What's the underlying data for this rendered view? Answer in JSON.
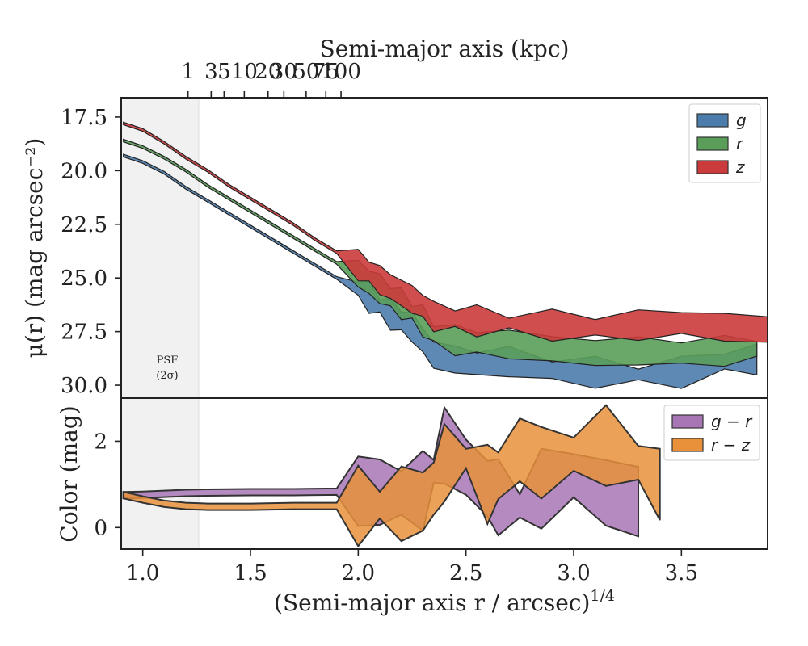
{
  "chart_data": [
    {
      "type": "area",
      "xlabel_top": "Semi-major axis (kpc)",
      "xticks_top": [
        1,
        3,
        5,
        10,
        20,
        30,
        50,
        75,
        100
      ],
      "ylabel": "μ(r) (mag arcsec⁻²)",
      "ylim": [
        30.6,
        16.6
      ],
      "yticks": [
        "17.5",
        "20.0",
        "22.5",
        "25.0",
        "27.5",
        "30.0"
      ],
      "xlim": [
        0.9,
        3.9
      ],
      "annotation": [
        "PSF",
        "(2σ)"
      ],
      "psf_shade_x": [
        0.9,
        1.26
      ],
      "legend_placement": "top-right",
      "series": [
        {
          "name": "g",
          "color": "#4c7cac",
          "x": [
            0.91,
            1.0,
            1.1,
            1.2,
            1.3,
            1.4,
            1.5,
            1.6,
            1.7,
            1.8,
            1.9,
            2.0,
            2.05,
            2.1,
            2.15,
            2.2,
            2.25,
            2.3,
            2.35,
            2.45,
            2.55,
            2.7,
            2.9,
            3.1,
            3.3,
            3.5,
            3.7,
            3.85
          ],
          "mu": [
            19.3,
            19.6,
            20.1,
            20.8,
            21.4,
            22.0,
            22.6,
            23.2,
            23.8,
            24.4,
            25.0,
            25.5,
            25.9,
            26.3,
            26.7,
            27.0,
            27.3,
            27.9,
            28.6,
            28.8,
            29.0,
            28.9,
            29.3,
            29.4,
            29.5,
            29.4,
            28.9,
            28.8
          ]
        },
        {
          "name": "r",
          "color": "#5a9e5a",
          "x": [
            0.91,
            1.0,
            1.1,
            1.2,
            1.3,
            1.4,
            1.5,
            1.6,
            1.7,
            1.8,
            1.9,
            2.0,
            2.05,
            2.1,
            2.15,
            2.2,
            2.25,
            2.3,
            2.35,
            2.45,
            2.55,
            2.7,
            2.9,
            3.1,
            3.3,
            3.5,
            3.7,
            3.85
          ],
          "mu": [
            18.6,
            18.9,
            19.4,
            20.0,
            20.7,
            21.3,
            21.9,
            22.5,
            23.1,
            23.7,
            24.3,
            24.8,
            25.2,
            25.5,
            25.9,
            26.2,
            26.6,
            27.0,
            27.6,
            27.9,
            28.0,
            28.1,
            28.3,
            28.5,
            28.4,
            28.5,
            28.4,
            28.3
          ]
        },
        {
          "name": "z",
          "color": "#cc3b3b",
          "x": [
            0.91,
            1.0,
            1.1,
            1.2,
            1.3,
            1.4,
            1.5,
            1.6,
            1.7,
            1.8,
            1.9,
            2.0,
            2.05,
            2.1,
            2.15,
            2.2,
            2.25,
            2.3,
            2.35,
            2.45,
            2.55,
            2.7,
            2.9,
            3.1,
            3.3,
            3.5,
            3.7,
            3.9
          ],
          "mu": [
            17.8,
            18.1,
            18.7,
            19.4,
            20.0,
            20.7,
            21.3,
            21.9,
            22.5,
            23.2,
            23.8,
            24.4,
            24.7,
            25.1,
            25.4,
            25.7,
            26.0,
            26.3,
            26.8,
            26.9,
            27.0,
            27.1,
            27.2,
            27.3,
            27.2,
            27.1,
            27.3,
            27.4
          ]
        }
      ]
    },
    {
      "type": "area",
      "xlabel": "(Semi-major axis r / arcsec)",
      "xlabel_sup": "1/4",
      "xticks": [
        "1.0",
        "1.5",
        "2.0",
        "2.5",
        "3.0",
        "3.5"
      ],
      "ylabel": "Color (mag)",
      "ylim": [
        -0.5,
        3.0
      ],
      "yticks": [
        "0",
        "2"
      ],
      "legend_placement": "top-right",
      "series": [
        {
          "name": "g − r",
          "color": "#a875b5",
          "x": [
            0.91,
            1.0,
            1.1,
            1.2,
            1.3,
            1.5,
            1.7,
            1.9,
            2.0,
            2.1,
            2.2,
            2.3,
            2.35,
            2.4,
            2.5,
            2.6,
            2.65,
            2.75,
            2.85,
            3.0,
            3.15,
            3.3
          ],
          "color_mag": [
            0.75,
            0.76,
            0.78,
            0.8,
            0.81,
            0.82,
            0.82,
            0.83,
            0.84,
            0.82,
            0.8,
            0.85,
            1.3,
            1.9,
            1.4,
            0.9,
            0.7,
            0.5,
            0.9,
            1.2,
            0.8,
            0.6
          ]
        },
        {
          "name": "r − z",
          "color": "#e8913a",
          "x": [
            0.91,
            1.0,
            1.1,
            1.2,
            1.3,
            1.5,
            1.7,
            1.9,
            2.0,
            2.1,
            2.2,
            2.3,
            2.35,
            2.4,
            2.5,
            2.6,
            2.65,
            2.75,
            2.85,
            3.0,
            3.15,
            3.3,
            3.4
          ],
          "color_mag": [
            0.75,
            0.65,
            0.55,
            0.5,
            0.48,
            0.48,
            0.5,
            0.5,
            0.5,
            0.52,
            0.55,
            0.6,
            0.9,
            1.5,
            1.6,
            1.0,
            1.2,
            1.8,
            1.5,
            1.7,
            1.9,
            1.5,
            1.0
          ]
        }
      ]
    }
  ]
}
